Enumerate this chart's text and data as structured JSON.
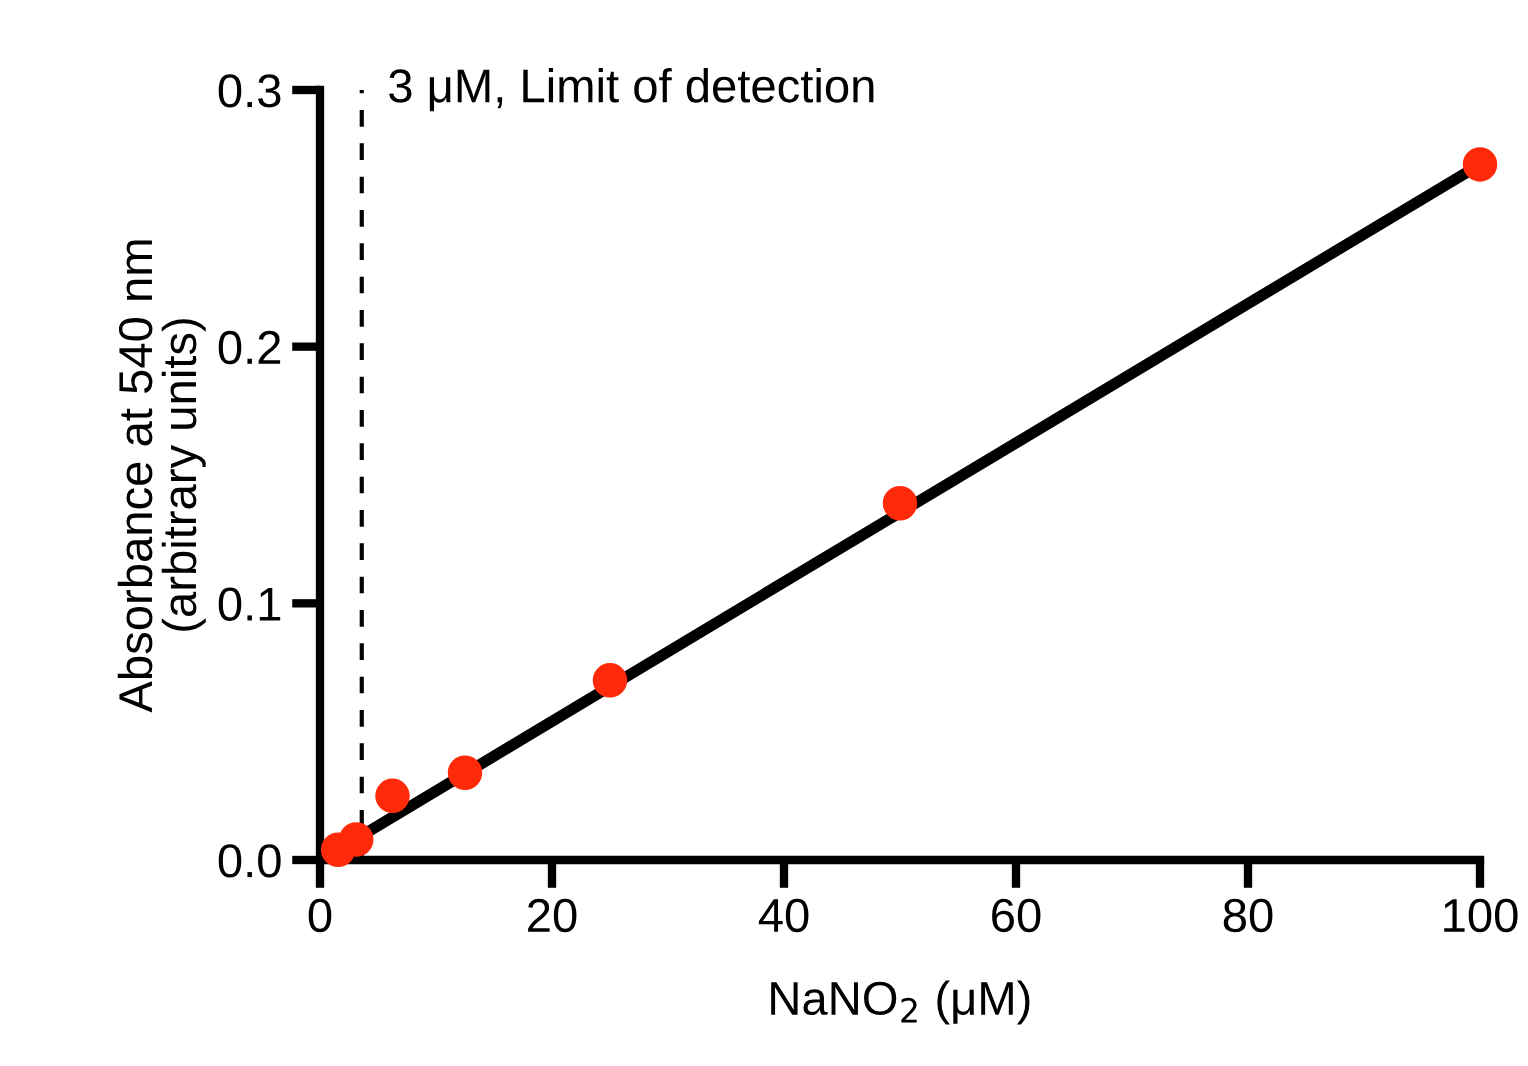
{
  "chart_data": {
    "type": "scatter",
    "xlabel": "NaNO$_{2}$ (μM)",
    "ylabel": "Absorbance at 540 nm\n(arbitrary units)",
    "series": [
      {
        "color": "#ff2a0a",
        "marker": "circle",
        "x": [
          1.5625,
          3.125,
          6.25,
          12.5,
          25,
          50,
          100
        ],
        "values": [
          0.004,
          0.008,
          0.025,
          0.034,
          0.07,
          0.139,
          0.271
        ]
      },
      {
        "type": "line",
        "color": "#000000",
        "line_style": "solid",
        "x": [
          1.5625,
          100
        ],
        "values": [
          0.004,
          0.271
        ]
      }
    ],
    "ref_lines": [
      {
        "axis": "x",
        "value": 3.6,
        "label": "3 μM, Limit of detection",
        "color": "#000000",
        "line_style": "dashed"
      }
    ],
    "xlim": [
      0,
      100
    ],
    "xticks": [
      0,
      20,
      40,
      60,
      80,
      100
    ],
    "ylim": [
      0,
      0.3
    ],
    "yticks": [
      {
        "value": 0,
        "label": "0.0"
      },
      0.1,
      0.2,
      0.3
    ],
    "grid": false,
    "legend": false
  }
}
